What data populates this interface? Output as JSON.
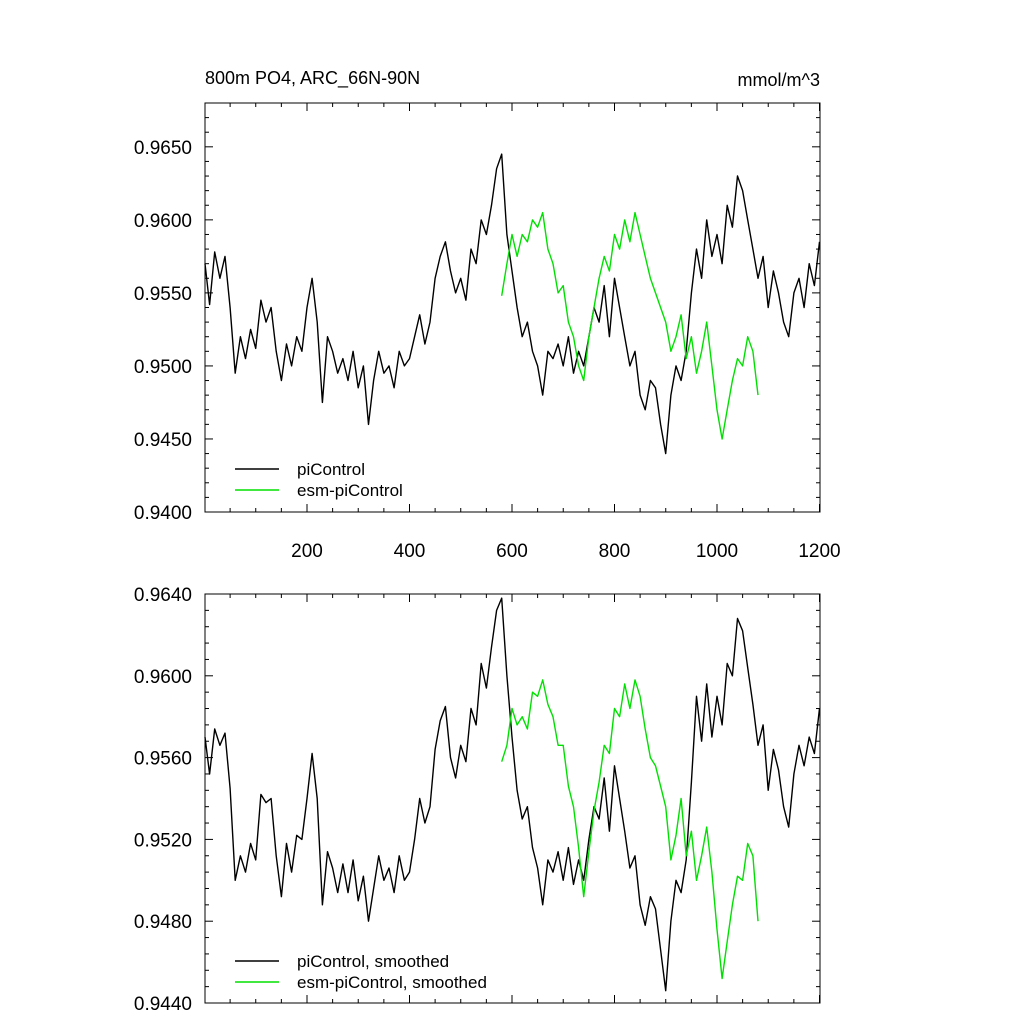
{
  "colors": {
    "piControl": "#000000",
    "esm_piControl": "#00e000"
  },
  "chart_data": [
    {
      "type": "line",
      "title": "800m PO4, ARC_66N-90N",
      "units": "mmol/m^3",
      "xlim": [
        1,
        1201
      ],
      "ylim": [
        0.94,
        0.968
      ],
      "x_ticks": [
        200,
        400,
        600,
        800,
        1000,
        1200
      ],
      "x_tick_labels": [
        "200",
        "400",
        "600",
        "800",
        "1000",
        "1200"
      ],
      "y_ticks": [
        0.94,
        0.945,
        0.95,
        0.955,
        0.96,
        0.965
      ],
      "y_tick_labels": [
        "0.9400",
        "0.9450",
        "0.9500",
        "0.9550",
        "0.9600",
        "0.9650"
      ],
      "legend_position": "bottom-left",
      "series": [
        {
          "name": "piControl",
          "color_key": "piControl",
          "x": [
            1,
            10,
            20,
            30,
            40,
            50,
            60,
            70,
            80,
            90,
            100,
            110,
            120,
            130,
            140,
            150,
            160,
            170,
            180,
            190,
            200,
            210,
            220,
            230,
            240,
            250,
            260,
            270,
            280,
            290,
            300,
            310,
            320,
            330,
            340,
            350,
            360,
            370,
            380,
            390,
            400,
            410,
            420,
            430,
            440,
            450,
            460,
            470,
            480,
            490,
            500,
            510,
            520,
            530,
            540,
            550,
            560,
            570,
            580,
            590,
            600,
            610,
            620,
            630,
            640,
            650,
            660,
            670,
            680,
            690,
            700,
            710,
            720,
            730,
            740,
            750,
            760,
            770,
            780,
            790,
            800,
            810,
            820,
            830,
            840,
            850,
            860,
            870,
            880,
            890,
            900,
            910,
            920,
            930,
            940,
            950,
            960,
            970,
            980,
            990,
            1000,
            1010,
            1020,
            1030,
            1040,
            1050,
            1060,
            1070,
            1080,
            1090,
            1100,
            1110,
            1120,
            1130,
            1140,
            1150,
            1160,
            1170,
            1180,
            1190,
            1200
          ],
          "values": [
            0.957,
            0.9542,
            0.9578,
            0.956,
            0.9575,
            0.954,
            0.9495,
            0.952,
            0.9505,
            0.9525,
            0.9512,
            0.9545,
            0.953,
            0.954,
            0.951,
            0.949,
            0.9515,
            0.95,
            0.952,
            0.951,
            0.954,
            0.956,
            0.953,
            0.9475,
            0.952,
            0.951,
            0.9495,
            0.9505,
            0.949,
            0.951,
            0.9485,
            0.95,
            0.946,
            0.949,
            0.951,
            0.9495,
            0.95,
            0.9485,
            0.951,
            0.95,
            0.9505,
            0.952,
            0.9535,
            0.9515,
            0.953,
            0.956,
            0.9575,
            0.9585,
            0.9565,
            0.955,
            0.956,
            0.9545,
            0.958,
            0.957,
            0.96,
            0.959,
            0.961,
            0.9635,
            0.9645,
            0.959,
            0.9565,
            0.954,
            0.952,
            0.953,
            0.951,
            0.95,
            0.948,
            0.951,
            0.9505,
            0.9515,
            0.95,
            0.952,
            0.9495,
            0.951,
            0.95,
            0.952,
            0.954,
            0.953,
            0.9555,
            0.952,
            0.956,
            0.954,
            0.952,
            0.95,
            0.951,
            0.948,
            0.947,
            0.949,
            0.9485,
            0.946,
            0.944,
            0.948,
            0.95,
            0.949,
            0.951,
            0.955,
            0.958,
            0.956,
            0.96,
            0.9575,
            0.959,
            0.957,
            0.961,
            0.9595,
            0.963,
            0.962,
            0.96,
            0.958,
            0.956,
            0.9575,
            0.954,
            0.9565,
            0.955,
            0.953,
            0.952,
            0.955,
            0.956,
            0.954,
            0.957,
            0.9555,
            0.9585
          ]
        },
        {
          "name": "esm-piControl",
          "color_key": "esm_piControl",
          "x": [
            580,
            590,
            600,
            610,
            620,
            630,
            640,
            650,
            660,
            670,
            680,
            690,
            700,
            710,
            720,
            730,
            740,
            750,
            760,
            770,
            780,
            790,
            800,
            810,
            820,
            830,
            840,
            850,
            860,
            870,
            880,
            890,
            900,
            910,
            920,
            930,
            940,
            950,
            960,
            970,
            980,
            990,
            1000,
            1010,
            1020,
            1030,
            1040,
            1050,
            1060,
            1070,
            1080
          ],
          "values": [
            0.9548,
            0.957,
            0.959,
            0.9575,
            0.959,
            0.9585,
            0.96,
            0.9595,
            0.9605,
            0.958,
            0.957,
            0.955,
            0.9555,
            0.953,
            0.952,
            0.95,
            0.949,
            0.952,
            0.954,
            0.956,
            0.9575,
            0.9565,
            0.959,
            0.958,
            0.96,
            0.9585,
            0.9605,
            0.959,
            0.9575,
            0.956,
            0.955,
            0.954,
            0.953,
            0.951,
            0.952,
            0.9535,
            0.9505,
            0.952,
            0.9495,
            0.951,
            0.953,
            0.95,
            0.947,
            0.945,
            0.947,
            0.949,
            0.9505,
            0.95,
            0.952,
            0.951,
            0.948
          ]
        }
      ]
    },
    {
      "type": "line",
      "title": "",
      "xlim": [
        1,
        1201
      ],
      "ylim": [
        0.944,
        0.964
      ],
      "x_ticks": [
        200,
        400,
        600,
        800,
        1000,
        1200
      ],
      "x_tick_labels": [],
      "y_ticks": [
        0.944,
        0.948,
        0.952,
        0.956,
        0.96,
        0.964
      ],
      "y_tick_labels": [
        "0.9440",
        "0.9480",
        "0.9520",
        "0.9560",
        "0.9600",
        "0.9640"
      ],
      "legend_position": "bottom-left",
      "series": [
        {
          "name": "piControl, smoothed",
          "color_key": "piControl",
          "x": [
            1,
            10,
            20,
            30,
            40,
            50,
            60,
            70,
            80,
            90,
            100,
            110,
            120,
            130,
            140,
            150,
            160,
            170,
            180,
            190,
            200,
            210,
            220,
            230,
            240,
            250,
            260,
            270,
            280,
            290,
            300,
            310,
            320,
            330,
            340,
            350,
            360,
            370,
            380,
            390,
            400,
            410,
            420,
            430,
            440,
            450,
            460,
            470,
            480,
            490,
            500,
            510,
            520,
            530,
            540,
            550,
            560,
            570,
            580,
            590,
            600,
            610,
            620,
            630,
            640,
            650,
            660,
            670,
            680,
            690,
            700,
            710,
            720,
            730,
            740,
            750,
            760,
            770,
            780,
            790,
            800,
            810,
            820,
            830,
            840,
            850,
            860,
            870,
            880,
            890,
            900,
            910,
            920,
            930,
            940,
            950,
            960,
            970,
            980,
            990,
            1000,
            1010,
            1020,
            1030,
            1040,
            1050,
            1060,
            1070,
            1080,
            1090,
            1100,
            1110,
            1120,
            1130,
            1140,
            1150,
            1160,
            1170,
            1180,
            1190,
            1200
          ],
          "values": [
            0.957,
            0.9552,
            0.9574,
            0.9566,
            0.9572,
            0.9545,
            0.95,
            0.9512,
            0.9504,
            0.9518,
            0.951,
            0.9542,
            0.9538,
            0.954,
            0.9512,
            0.9492,
            0.9518,
            0.9504,
            0.9522,
            0.952,
            0.954,
            0.9562,
            0.954,
            0.9488,
            0.9514,
            0.9506,
            0.9494,
            0.9508,
            0.9494,
            0.951,
            0.949,
            0.9502,
            0.948,
            0.9496,
            0.9512,
            0.95,
            0.9506,
            0.9494,
            0.9512,
            0.95,
            0.9504,
            0.952,
            0.954,
            0.9528,
            0.9536,
            0.9564,
            0.9578,
            0.9585,
            0.956,
            0.955,
            0.9566,
            0.9558,
            0.9584,
            0.9576,
            0.9606,
            0.9594,
            0.9614,
            0.9632,
            0.9638,
            0.96,
            0.957,
            0.9544,
            0.953,
            0.9536,
            0.9516,
            0.9506,
            0.9488,
            0.951,
            0.9504,
            0.9514,
            0.95,
            0.9516,
            0.9498,
            0.951,
            0.95,
            0.952,
            0.9536,
            0.953,
            0.955,
            0.9524,
            0.9556,
            0.954,
            0.9524,
            0.9506,
            0.9512,
            0.9488,
            0.9478,
            0.9492,
            0.9486,
            0.9466,
            0.9446,
            0.948,
            0.95,
            0.9494,
            0.951,
            0.9548,
            0.959,
            0.9568,
            0.9596,
            0.957,
            0.959,
            0.9576,
            0.9606,
            0.96,
            0.9628,
            0.9622,
            0.9604,
            0.9586,
            0.9566,
            0.9576,
            0.9544,
            0.9564,
            0.9554,
            0.9536,
            0.9526,
            0.9552,
            0.9566,
            0.9556,
            0.957,
            0.9562,
            0.9584
          ]
        },
        {
          "name": "esm-piControl, smoothed",
          "color_key": "esm_piControl",
          "x": [
            580,
            590,
            600,
            610,
            620,
            630,
            640,
            650,
            660,
            670,
            680,
            690,
            700,
            710,
            720,
            730,
            740,
            750,
            760,
            770,
            780,
            790,
            800,
            810,
            820,
            830,
            840,
            850,
            860,
            870,
            880,
            890,
            900,
            910,
            920,
            930,
            940,
            950,
            960,
            970,
            980,
            990,
            1000,
            1010,
            1020,
            1030,
            1040,
            1050,
            1060,
            1070,
            1080
          ],
          "values": [
            0.9558,
            0.9566,
            0.9584,
            0.9576,
            0.958,
            0.9574,
            0.9592,
            0.959,
            0.9598,
            0.9586,
            0.958,
            0.9566,
            0.9566,
            0.9546,
            0.9536,
            0.9516,
            0.9492,
            0.9514,
            0.9534,
            0.9548,
            0.9566,
            0.9562,
            0.9584,
            0.958,
            0.9596,
            0.9584,
            0.9598,
            0.959,
            0.9574,
            0.956,
            0.9556,
            0.9546,
            0.9536,
            0.951,
            0.9522,
            0.954,
            0.9512,
            0.9524,
            0.95,
            0.9512,
            0.9526,
            0.9504,
            0.9476,
            0.9452,
            0.947,
            0.9488,
            0.9502,
            0.95,
            0.9518,
            0.9512,
            0.948
          ]
        }
      ]
    }
  ]
}
